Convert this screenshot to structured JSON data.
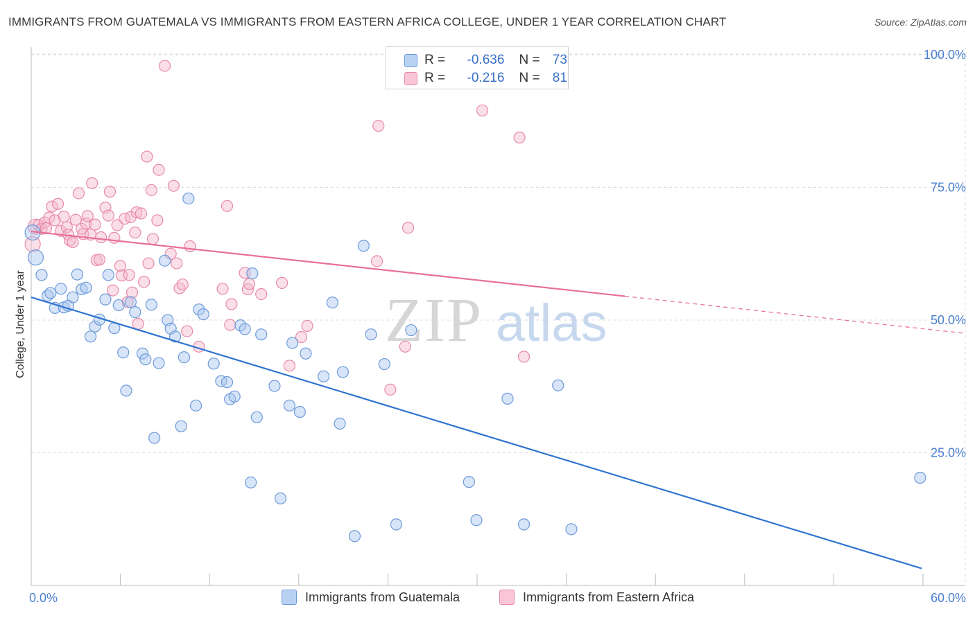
{
  "header": {
    "title": "IMMIGRANTS FROM GUATEMALA VS IMMIGRANTS FROM EASTERN AFRICA COLLEGE, UNDER 1 YEAR CORRELATION CHART",
    "source": "Source: ZipAtlas.com"
  },
  "watermark": {
    "zip": "ZIP",
    "atlas": "atlas"
  },
  "legend": {
    "rows": [
      {
        "r_label": "R =",
        "r_value": "-0.636",
        "n_label": "N =",
        "n_value": "73"
      },
      {
        "r_label": "R =",
        "r_value": "-0.216",
        "n_label": "N =",
        "n_value": "81"
      }
    ]
  },
  "colors": {
    "blue_fill": "#a9c6ef",
    "blue_stroke": "#6c9ad8",
    "blue_line": "#2f74d0",
    "pink_fill": "#f5b8cb",
    "pink_stroke": "#e88aa8",
    "pink_line": "#e8709a",
    "grid": "#dddddd",
    "tick_text": "#4a7fd0"
  },
  "chart_data": {
    "type": "scatter",
    "title": "IMMIGRANTS FROM GUATEMALA VS IMMIGRANTS FROM EASTERN AFRICA COLLEGE, UNDER 1 YEAR CORRELATION CHART",
    "xlabel": "",
    "ylabel": "College, Under 1 year",
    "xlim": [
      0,
      60
    ],
    "ylim": [
      0,
      105
    ],
    "x_tick_labels": [
      "0.0%",
      "60.0%"
    ],
    "y_ticks": [
      25,
      50,
      75,
      100
    ],
    "y_tick_labels": [
      "25.0%",
      "50.0%",
      "75.0%",
      "100.0%"
    ],
    "grid": "horizontal dashed",
    "legend_position": "top-center",
    "series": [
      {
        "name": "Immigrants from Guatemala",
        "color": "blue",
        "trend": {
          "x": [
            0,
            60
          ],
          "y": [
            54.3,
            3.2
          ],
          "dashed_from": null
        },
        "points": [
          [
            0.1,
            66.5
          ],
          [
            0.3,
            61.8
          ],
          [
            0.7,
            58.5
          ],
          [
            1.1,
            54.6
          ],
          [
            1.3,
            55.1
          ],
          [
            1.6,
            52.3
          ],
          [
            2.0,
            55.9
          ],
          [
            2.2,
            52.4
          ],
          [
            2.5,
            52.7
          ],
          [
            2.8,
            54.3
          ],
          [
            3.1,
            58.6
          ],
          [
            3.4,
            55.8
          ],
          [
            3.7,
            56.1
          ],
          [
            4.0,
            46.9
          ],
          [
            4.3,
            48.8
          ],
          [
            4.6,
            50.1
          ],
          [
            5.0,
            53.9
          ],
          [
            5.2,
            58.5
          ],
          [
            5.6,
            48.5
          ],
          [
            5.9,
            52.8
          ],
          [
            6.2,
            43.9
          ],
          [
            6.4,
            36.7
          ],
          [
            6.7,
            53.4
          ],
          [
            7.0,
            51.5
          ],
          [
            7.5,
            43.7
          ],
          [
            7.7,
            42.6
          ],
          [
            8.1,
            52.9
          ],
          [
            8.3,
            27.8
          ],
          [
            8.6,
            41.9
          ],
          [
            9.0,
            61.2
          ],
          [
            9.2,
            50.0
          ],
          [
            9.4,
            48.4
          ],
          [
            9.7,
            46.9
          ],
          [
            10.1,
            30.0
          ],
          [
            10.3,
            43.0
          ],
          [
            10.6,
            72.9
          ],
          [
            11.1,
            33.9
          ],
          [
            11.3,
            52.0
          ],
          [
            11.6,
            51.1
          ],
          [
            12.3,
            41.8
          ],
          [
            12.8,
            38.5
          ],
          [
            13.2,
            38.3
          ],
          [
            13.4,
            35.1
          ],
          [
            13.7,
            35.6
          ],
          [
            14.1,
            49.0
          ],
          [
            14.4,
            48.3
          ],
          [
            14.8,
            19.4
          ],
          [
            14.9,
            58.8
          ],
          [
            15.2,
            31.7
          ],
          [
            15.5,
            47.3
          ],
          [
            16.4,
            37.6
          ],
          [
            16.8,
            16.4
          ],
          [
            17.4,
            33.9
          ],
          [
            17.6,
            45.7
          ],
          [
            18.1,
            32.7
          ],
          [
            18.5,
            43.7
          ],
          [
            19.7,
            39.4
          ],
          [
            20.3,
            53.3
          ],
          [
            20.8,
            30.5
          ],
          [
            21.0,
            40.2
          ],
          [
            21.8,
            9.3
          ],
          [
            22.4,
            64.0
          ],
          [
            22.9,
            47.3
          ],
          [
            23.8,
            41.7
          ],
          [
            24.6,
            11.5
          ],
          [
            25.6,
            48.1
          ],
          [
            29.5,
            19.5
          ],
          [
            30.0,
            12.3
          ],
          [
            32.1,
            35.2
          ],
          [
            33.2,
            11.5
          ],
          [
            35.5,
            37.7
          ],
          [
            36.4,
            10.6
          ],
          [
            59.9,
            20.3
          ]
        ]
      },
      {
        "name": "Immigrants from Eastern Africa",
        "color": "pink",
        "trend": {
          "x": [
            0,
            60
          ],
          "y": [
            66.7,
            48.4
          ],
          "dashed_from": 40
        },
        "points": [
          [
            0.1,
            64.3
          ],
          [
            0.3,
            67.6
          ],
          [
            0.5,
            67.9
          ],
          [
            0.7,
            67.2
          ],
          [
            0.9,
            68.4
          ],
          [
            1.0,
            67.3
          ],
          [
            1.2,
            69.3
          ],
          [
            1.4,
            71.4
          ],
          [
            1.6,
            68.8
          ],
          [
            1.8,
            71.9
          ],
          [
            2.0,
            66.8
          ],
          [
            2.2,
            69.5
          ],
          [
            2.4,
            67.5
          ],
          [
            2.5,
            66.1
          ],
          [
            2.6,
            65.0
          ],
          [
            2.8,
            64.7
          ],
          [
            3.0,
            68.9
          ],
          [
            3.2,
            73.9
          ],
          [
            3.4,
            67.2
          ],
          [
            3.5,
            66.2
          ],
          [
            3.7,
            68.2
          ],
          [
            3.8,
            69.6
          ],
          [
            4.0,
            66.1
          ],
          [
            4.1,
            75.8
          ],
          [
            4.3,
            68.0
          ],
          [
            4.4,
            61.3
          ],
          [
            4.6,
            61.4
          ],
          [
            4.7,
            65.6
          ],
          [
            5.0,
            71.2
          ],
          [
            5.2,
            69.7
          ],
          [
            5.3,
            74.2
          ],
          [
            5.5,
            55.6
          ],
          [
            5.6,
            65.5
          ],
          [
            5.8,
            67.9
          ],
          [
            6.0,
            60.2
          ],
          [
            6.1,
            58.4
          ],
          [
            6.3,
            69.1
          ],
          [
            6.5,
            53.4
          ],
          [
            6.6,
            58.5
          ],
          [
            6.7,
            69.4
          ],
          [
            6.8,
            55.2
          ],
          [
            7.0,
            66.5
          ],
          [
            7.1,
            70.3
          ],
          [
            7.2,
            49.3
          ],
          [
            7.4,
            70.1
          ],
          [
            7.6,
            57.2
          ],
          [
            7.8,
            80.8
          ],
          [
            7.9,
            60.7
          ],
          [
            8.1,
            74.5
          ],
          [
            8.2,
            65.3
          ],
          [
            8.5,
            68.8
          ],
          [
            8.6,
            78.3
          ],
          [
            9.0,
            97.9
          ],
          [
            9.4,
            62.5
          ],
          [
            9.6,
            75.3
          ],
          [
            9.8,
            60.7
          ],
          [
            10.0,
            56.0
          ],
          [
            10.2,
            56.7
          ],
          [
            10.5,
            47.9
          ],
          [
            10.7,
            63.9
          ],
          [
            11.3,
            45.0
          ],
          [
            12.9,
            55.9
          ],
          [
            13.2,
            71.5
          ],
          [
            13.4,
            49.1
          ],
          [
            13.5,
            53.0
          ],
          [
            14.4,
            58.9
          ],
          [
            14.6,
            55.8
          ],
          [
            14.7,
            56.8
          ],
          [
            15.5,
            54.9
          ],
          [
            16.9,
            57.0
          ],
          [
            17.4,
            41.4
          ],
          [
            18.2,
            46.8
          ],
          [
            18.6,
            48.9
          ],
          [
            23.3,
            61.1
          ],
          [
            23.4,
            86.6
          ],
          [
            24.2,
            36.9
          ],
          [
            25.2,
            45.0
          ],
          [
            25.4,
            67.4
          ],
          [
            30.4,
            89.5
          ],
          [
            32.9,
            84.4
          ],
          [
            33.2,
            43.1
          ]
        ]
      }
    ]
  },
  "bottom_legend": {
    "items": [
      {
        "label": "Immigrants from Guatemala"
      },
      {
        "label": "Immigrants from Eastern Africa"
      }
    ]
  }
}
